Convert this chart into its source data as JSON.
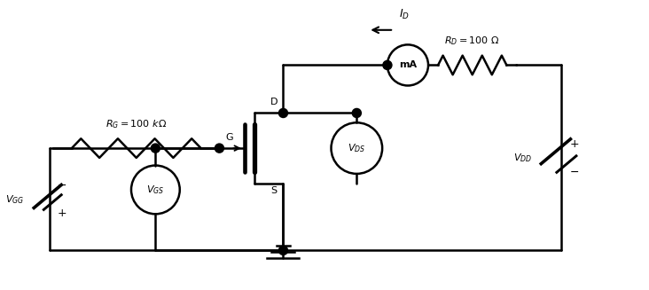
{
  "bg_color": "#ffffff",
  "line_color": "#000000",
  "line_width": 1.8,
  "fig_width": 7.32,
  "fig_height": 3.27,
  "labels": {
    "VGG": "V_{GG}",
    "RG": "R_G=100 kΩ",
    "VGS": "V_{GS}",
    "VDS": "V_{DS}",
    "mA": "mA",
    "ID": "I_D",
    "RD": "R_D= 100 Ω",
    "VDD": "V_{DD}",
    "G": "G",
    "D": "D",
    "S": "S"
  }
}
